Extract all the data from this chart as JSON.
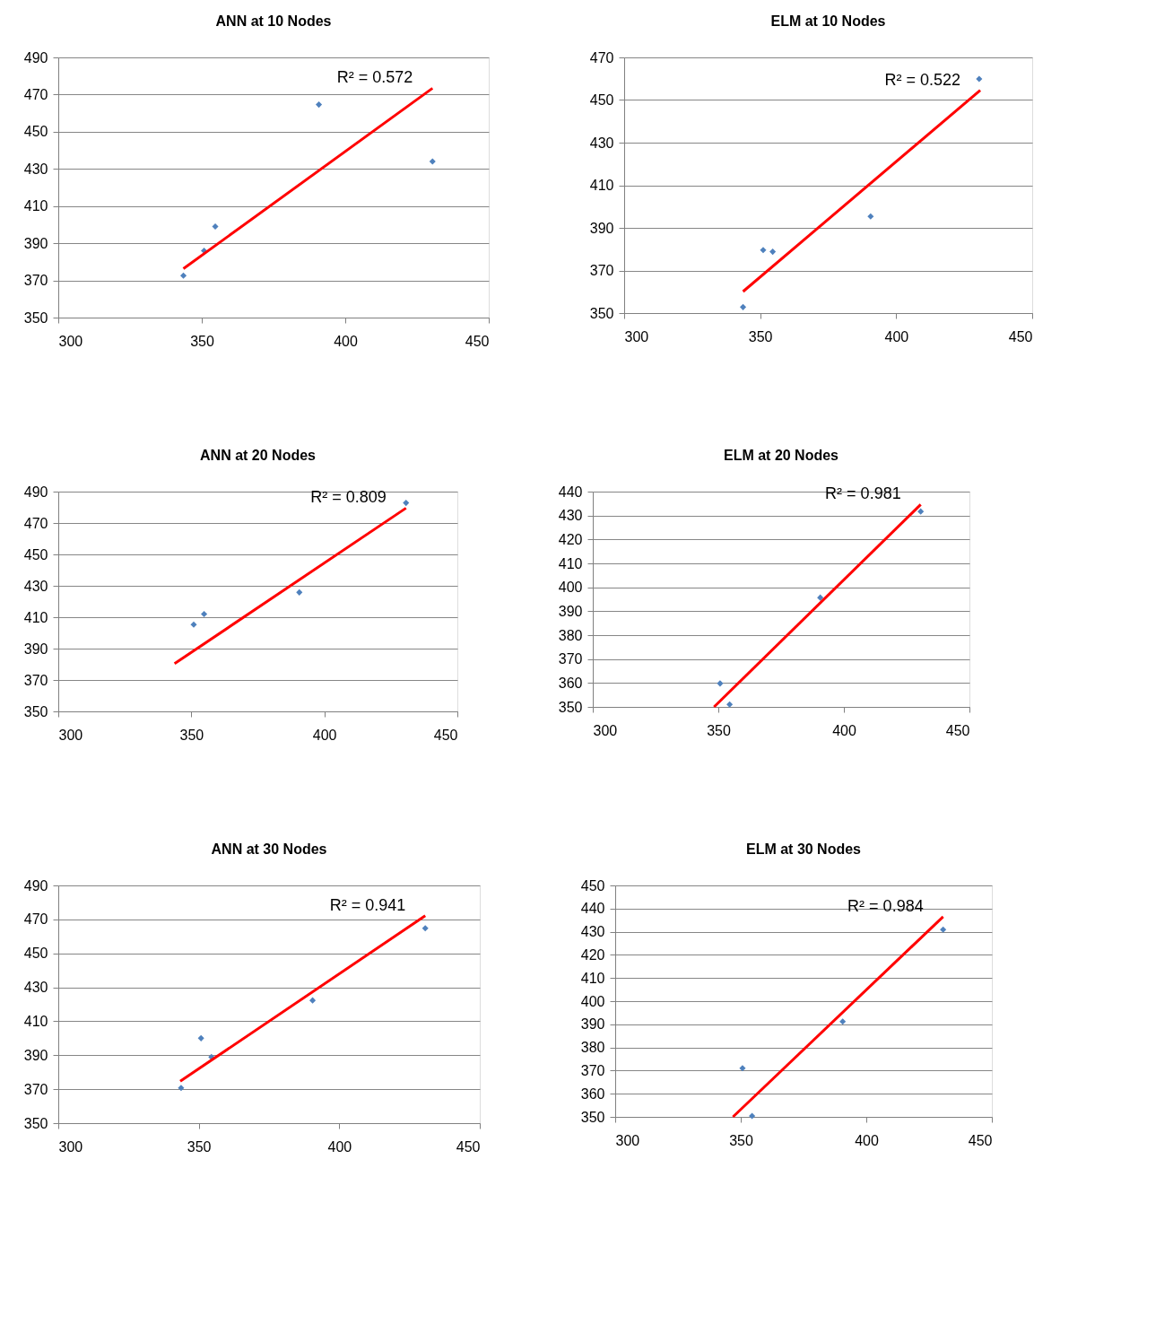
{
  "chart_data": [
    {
      "type": "scatter",
      "title": "ANN at 10 Nodes",
      "xlim": [
        300,
        450
      ],
      "xticks": [
        300,
        350,
        400,
        450
      ],
      "ylim": [
        350,
        490
      ],
      "yticks": [
        350,
        370,
        390,
        410,
        430,
        450,
        470,
        490
      ],
      "grid": "y",
      "annotations": [
        "R² = 0.572"
      ],
      "series": [
        {
          "marker": "diamond",
          "color": "#4f81bd",
          "x": [
            343.6,
            350.8,
            354.7,
            390.8,
            430.4
          ],
          "values": [
            372.6,
            386,
            399,
            464.6,
            434
          ]
        },
        {
          "type": "line",
          "color": "#ff0000",
          "x": [
            343.6,
            430.4
          ],
          "values": [
            376.3,
            473.4
          ]
        }
      ]
    },
    {
      "type": "scatter",
      "title": "ELM at 10 Nodes",
      "xlim": [
        300,
        450
      ],
      "xticks": [
        300,
        350,
        400,
        450
      ],
      "ylim": [
        350,
        470
      ],
      "yticks": [
        350,
        370,
        390,
        410,
        430,
        450,
        470
      ],
      "grid": "y",
      "annotations": [
        "R² = 0.522"
      ],
      "series": [
        {
          "marker": "diamond",
          "color": "#4f81bd",
          "x": [
            343.7,
            351.1,
            354.6,
            390.6,
            430.5
          ],
          "values": [
            352.8,
            379.6,
            378.8,
            395.4,
            459.9
          ]
        },
        {
          "type": "line",
          "color": "#ff0000",
          "x": [
            343.7,
            430.9
          ],
          "values": [
            360.1,
            454.6
          ]
        }
      ]
    },
    {
      "type": "scatter",
      "title": "ANN at 20 Nodes",
      "xlim": [
        300,
        450
      ],
      "xticks": [
        300,
        350,
        400,
        450
      ],
      "ylim": [
        350,
        490
      ],
      "yticks": [
        350,
        370,
        390,
        410,
        430,
        450,
        470,
        490
      ],
      "grid": "y",
      "annotations": [
        "R² = 0.809"
      ],
      "series": [
        {
          "marker": "diamond",
          "color": "#4f81bd",
          "x": [
            350.9,
            354.8,
            390.6,
            430.7
          ],
          "values": [
            405.3,
            412,
            425.8,
            482.8
          ]
        },
        {
          "type": "line",
          "color": "#ff0000",
          "x": [
            343.7,
            430.7
          ],
          "values": [
            380.4,
            479.5
          ]
        }
      ]
    },
    {
      "type": "scatter",
      "title": "ELM at 20 Nodes",
      "xlim": [
        300,
        450
      ],
      "xticks": [
        300,
        350,
        400,
        450
      ],
      "ylim": [
        350,
        440
      ],
      "yticks": [
        350,
        360,
        370,
        380,
        390,
        400,
        410,
        420,
        430,
        440
      ],
      "grid": "y",
      "annotations": [
        "R² = 0.981"
      ],
      "series": [
        {
          "marker": "diamond",
          "color": "#4f81bd",
          "x": [
            350.7,
            354.5,
            390.6,
            430.6
          ],
          "values": [
            359.8,
            351,
            395.7,
            431.7
          ]
        },
        {
          "type": "line",
          "color": "#ff0000",
          "x": [
            348.3,
            430.6
          ],
          "values": [
            350,
            434.6
          ]
        }
      ]
    },
    {
      "type": "scatter",
      "title": "ANN at 30 Nodes",
      "xlim": [
        300,
        450
      ],
      "xticks": [
        300,
        350,
        400,
        450
      ],
      "ylim": [
        350,
        490
      ],
      "yticks": [
        350,
        370,
        390,
        410,
        430,
        450,
        470,
        490
      ],
      "grid": "y",
      "annotations": [
        "R² = 0.941"
      ],
      "series": [
        {
          "marker": "diamond",
          "color": "#4f81bd",
          "x": [
            343.7,
            350.8,
            354.5,
            390.5,
            430.6
          ],
          "values": [
            370.7,
            400,
            388.9,
            422.3,
            464.8
          ]
        },
        {
          "type": "line",
          "color": "#ff0000",
          "x": [
            343.4,
            430.6
          ],
          "values": [
            374.7,
            472.2
          ]
        }
      ]
    },
    {
      "type": "scatter",
      "title": "ELM at 30 Nodes",
      "xlim": [
        300,
        450
      ],
      "xticks": [
        300,
        350,
        400,
        450
      ],
      "ylim": [
        350,
        450
      ],
      "yticks": [
        350,
        360,
        370,
        380,
        390,
        400,
        410,
        420,
        430,
        440,
        450
      ],
      "grid": "y",
      "annotations": [
        "R² = 0.984"
      ],
      "series": [
        {
          "marker": "diamond",
          "color": "#4f81bd",
          "x": [
            350.7,
            354.5,
            390.6,
            430.6
          ],
          "values": [
            371,
            350.4,
            391.2,
            430.9
          ]
        },
        {
          "type": "line",
          "color": "#ff0000",
          "x": [
            346.9,
            430.6
          ],
          "values": [
            350,
            436.5
          ]
        }
      ]
    }
  ]
}
